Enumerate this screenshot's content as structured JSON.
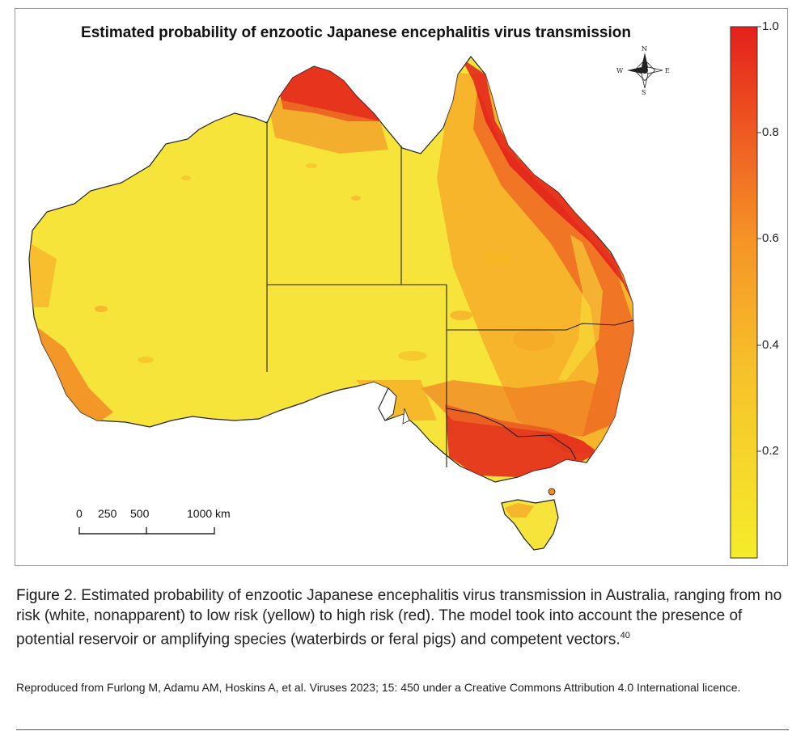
{
  "map": {
    "title": "Estimated probability of enzootic Japanese encephalitis virus transmission",
    "colorbar": {
      "ticks": [
        "1.0",
        "0.8",
        "0.6",
        "0.4",
        "0.2"
      ],
      "min": 0,
      "max": 1.0,
      "colors": {
        "low": "#f5ec2a",
        "mid": "#f6a626",
        "high": "#e3201b"
      }
    },
    "scale_bar": {
      "labels": [
        "0",
        "250",
        "500",
        "1000 km"
      ]
    },
    "compass": {
      "n": "N",
      "s": "S",
      "e": "E",
      "w": "W"
    },
    "land_color": "#f7e43a"
  },
  "caption": {
    "figure_label": "Figure 2",
    "text": ". Estimated probability of enzootic Japanese encephalitis virus transmission in Australia, ranging from no risk (white, nonapparent) to low risk (yellow) to high risk (red). The model took into account the presence of potential reservoir or amplifying species (waterbirds or feral pigs) and competent vectors.",
    "ref": "40"
  },
  "source": "Reproduced from Furlong M, Adamu AM, Hoskins A, et al. Viruses 2023; 15: 450 under a Creative Commons Attribution 4.0 International licence."
}
